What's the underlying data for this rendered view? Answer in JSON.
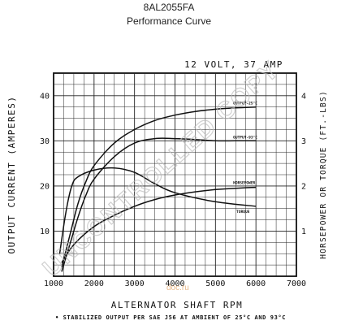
{
  "header": {
    "part_number": "8AL2055FA",
    "subtitle": "Performance Curve"
  },
  "watermark": {
    "text": "UNCONTROLLED COPY",
    "site": "doc.ru",
    "site_color": "#e0a060"
  },
  "chart_data": {
    "type": "line",
    "title": "12 VOLT, 37 AMP",
    "xlabel": "ALTERNATOR SHAFT RPM",
    "ylabel": "OUTPUT CURRENT (AMPERES)",
    "y2label": "HORSEPOWER OR TORQUE (FT.-LBS)",
    "footnote": "• STABILIZED OUTPUT PER SAE J56 AT AMBIENT OF 25°C AND 93°C",
    "xlim": [
      1000,
      7000
    ],
    "ylim": [
      0,
      45
    ],
    "y2lim": [
      0,
      4.5
    ],
    "x_ticks": [
      1000,
      2000,
      3000,
      4000,
      5000,
      6000,
      7000
    ],
    "x_tick_labels": [
      "1000",
      "2000",
      "3000",
      "4000",
      "5000",
      "6000",
      "7000"
    ],
    "y_ticks": [
      10,
      20,
      30,
      40
    ],
    "y_tick_labels": [
      "10",
      "20",
      "30",
      "40"
    ],
    "y2_ticks": [
      1,
      2,
      3,
      4
    ],
    "y2_tick_labels": [
      "1",
      "2",
      "3",
      "4"
    ],
    "grid": true,
    "series": [
      {
        "name": "OUTPUT-25°C",
        "axis": "left",
        "x": [
          1200,
          1400,
          1600,
          1800,
          2000,
          2500,
          3000,
          3500,
          4000,
          4500,
          5000,
          5500,
          6000
        ],
        "y": [
          2,
          9,
          16,
          21,
          24.5,
          29.5,
          32.5,
          34.5,
          35.7,
          36.5,
          37.0,
          37.3,
          37.5
        ]
      },
      {
        "name": "OUTPUT-93°C",
        "axis": "left",
        "x": [
          1200,
          1400,
          1600,
          1800,
          2000,
          2500,
          3000,
          3500,
          4000,
          4500,
          5000,
          5500,
          6000
        ],
        "y": [
          1,
          7,
          13,
          18,
          21.5,
          26.5,
          29.5,
          30.5,
          30.5,
          30.3,
          30.0,
          30.0,
          30.0
        ]
      },
      {
        "name": "HORSEPOWER",
        "axis": "right",
        "x": [
          1200,
          1500,
          2000,
          2500,
          3000,
          3500,
          4000,
          4500,
          5000,
          5500,
          6000
        ],
        "y": [
          0.3,
          0.7,
          1.1,
          1.35,
          1.55,
          1.7,
          1.8,
          1.87,
          1.92,
          1.95,
          1.97
        ]
      },
      {
        "name": "TORQUE",
        "axis": "right",
        "x": [
          1150,
          1300,
          1450,
          1600,
          2000,
          2500,
          3000,
          3500,
          4000,
          5000,
          6000
        ],
        "y": [
          0.5,
          1.4,
          2.0,
          2.2,
          2.35,
          2.4,
          2.3,
          2.05,
          1.85,
          1.65,
          1.55
        ]
      }
    ]
  }
}
